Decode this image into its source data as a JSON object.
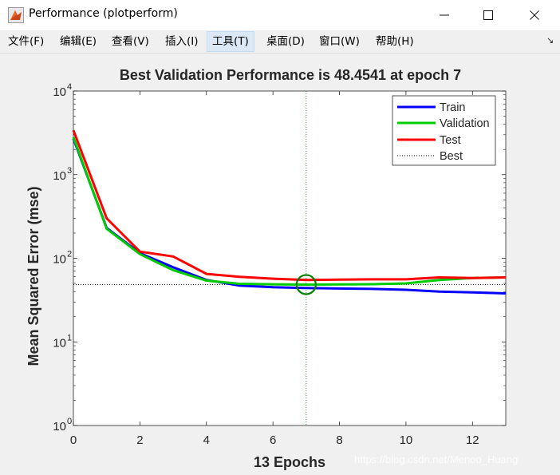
{
  "window": {
    "title": "Performance (plotperform)",
    "controls": {
      "minimize": "—",
      "maximize": "☐",
      "close": "✕"
    }
  },
  "menu": {
    "items": [
      {
        "label": "文件(F)"
      },
      {
        "label": "编辑(E)"
      },
      {
        "label": "查看(V)"
      },
      {
        "label": "插入(I)"
      },
      {
        "label": "工具(T)",
        "active": true
      },
      {
        "label": "桌面(D)"
      },
      {
        "label": "窗口(W)"
      },
      {
        "label": "帮助(H)"
      }
    ],
    "overflow_icon": "↘"
  },
  "watermark": "https://blog.csdn.net/Menoo_Huang",
  "colors": {
    "train": "#0000ff",
    "validation": "#00cc00",
    "test": "#ff0000",
    "best_line": "#000000",
    "best_vline": "#008000",
    "axes_bg": "#ffffff"
  },
  "chart_data": {
    "type": "line",
    "title": "Best Validation Performance is 48.4541 at epoch 7",
    "xlabel": "13 Epochs",
    "ylabel": "Mean Squared Error  (mse)",
    "xlim": [
      0,
      13
    ],
    "ylim": [
      1,
      10000
    ],
    "yscale": "log",
    "grid": false,
    "legend_position": "top-right",
    "x_ticks": [
      0,
      2,
      4,
      6,
      8,
      10,
      12
    ],
    "y_ticks": [
      {
        "value": 1,
        "base": "10",
        "exp": "0"
      },
      {
        "value": 10,
        "base": "10",
        "exp": "1"
      },
      {
        "value": 100,
        "base": "10",
        "exp": "2"
      },
      {
        "value": 1000,
        "base": "10",
        "exp": "3"
      },
      {
        "value": 10000,
        "base": "10",
        "exp": "4"
      }
    ],
    "x": [
      0,
      1,
      2,
      3,
      4,
      5,
      6,
      7,
      8,
      9,
      10,
      11,
      12,
      13
    ],
    "series": [
      {
        "name": "Train",
        "key": "train",
        "values": [
          2700,
          230,
          115,
          78,
          55,
          47,
          45,
          44,
          43.5,
          43,
          42,
          40,
          39,
          38
        ]
      },
      {
        "name": "Validation",
        "key": "validation",
        "values": [
          2800,
          225,
          112,
          72,
          54,
          49.5,
          48.8,
          48.4541,
          48.6,
          49,
          50,
          55,
          58,
          59
        ]
      },
      {
        "name": "Test",
        "key": "test",
        "values": [
          3400,
          300,
          120,
          105,
          65,
          60,
          57,
          55,
          55.5,
          56,
          56,
          59,
          58,
          59
        ]
      }
    ],
    "best": {
      "label": "Best",
      "epoch": 7,
      "value": 48.4541
    }
  }
}
